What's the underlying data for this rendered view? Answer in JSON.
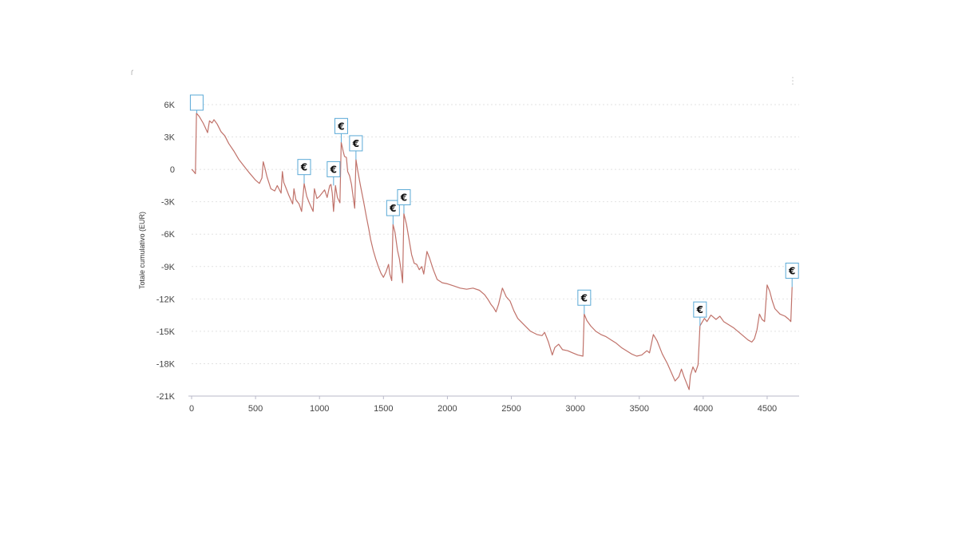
{
  "chart_data": {
    "type": "line",
    "ylabel": "Totale cumulativo (EUR)",
    "xlabel": "",
    "xlim": [
      0,
      4750
    ],
    "ylim": [
      -21000,
      6000
    ],
    "x_ticks": [
      0,
      500,
      1000,
      1500,
      2000,
      2500,
      3000,
      3500,
      4000,
      4500
    ],
    "x_tick_labels": [
      "0",
      "500",
      "1000",
      "1500",
      "2000",
      "2500",
      "3000",
      "3500",
      "4000",
      "4500"
    ],
    "y_ticks": [
      6000,
      3000,
      0,
      -3000,
      -6000,
      -9000,
      -12000,
      -15000,
      -18000,
      -21000
    ],
    "y_tick_labels": [
      "6K",
      "3K",
      "0",
      "-3K",
      "-6K",
      "-9K",
      "-12K",
      "-15K",
      "-18K",
      "-21K"
    ],
    "grid": "horizontal dotted",
    "legend": "none",
    "line_color": "#c0726a",
    "flag_color": "#5aa9d6",
    "series": [
      {
        "points": [
          [
            0,
            0
          ],
          [
            10,
            -100
          ],
          [
            30,
            -400
          ],
          [
            38,
            5200
          ],
          [
            60,
            4900
          ],
          [
            90,
            4300
          ],
          [
            110,
            3800
          ],
          [
            125,
            3400
          ],
          [
            140,
            4500
          ],
          [
            160,
            4300
          ],
          [
            175,
            4600
          ],
          [
            200,
            4200
          ],
          [
            230,
            3500
          ],
          [
            260,
            3100
          ],
          [
            290,
            2400
          ],
          [
            330,
            1700
          ],
          [
            370,
            900
          ],
          [
            410,
            300
          ],
          [
            450,
            -300
          ],
          [
            500,
            -1000
          ],
          [
            530,
            -1300
          ],
          [
            550,
            -800
          ],
          [
            560,
            700
          ],
          [
            570,
            300
          ],
          [
            590,
            -700
          ],
          [
            620,
            -1800
          ],
          [
            650,
            -2000
          ],
          [
            670,
            -1500
          ],
          [
            700,
            -2200
          ],
          [
            710,
            -200
          ],
          [
            720,
            -1200
          ],
          [
            740,
            -1800
          ],
          [
            760,
            -2400
          ],
          [
            790,
            -3200
          ],
          [
            800,
            -1800
          ],
          [
            815,
            -2800
          ],
          [
            840,
            -3200
          ],
          [
            860,
            -3900
          ],
          [
            880,
            -1300
          ],
          [
            900,
            -2500
          ],
          [
            920,
            -3100
          ],
          [
            950,
            -3900
          ],
          [
            960,
            -1800
          ],
          [
            980,
            -2700
          ],
          [
            1000,
            -2500
          ],
          [
            1040,
            -1900
          ],
          [
            1060,
            -2600
          ],
          [
            1080,
            -1500
          ],
          [
            1090,
            -1400
          ],
          [
            1100,
            -2200
          ],
          [
            1110,
            -3900
          ],
          [
            1125,
            -1500
          ],
          [
            1140,
            -2600
          ],
          [
            1160,
            -3100
          ],
          [
            1170,
            2500
          ],
          [
            1185,
            1700
          ],
          [
            1195,
            1200
          ],
          [
            1210,
            1100
          ],
          [
            1220,
            -200
          ],
          [
            1235,
            -600
          ],
          [
            1250,
            -1400
          ],
          [
            1260,
            -2300
          ],
          [
            1275,
            -3600
          ],
          [
            1285,
            900
          ],
          [
            1300,
            -200
          ],
          [
            1320,
            -1500
          ],
          [
            1345,
            -3000
          ],
          [
            1365,
            -4300
          ],
          [
            1385,
            -5500
          ],
          [
            1400,
            -6500
          ],
          [
            1420,
            -7500
          ],
          [
            1440,
            -8300
          ],
          [
            1460,
            -9000
          ],
          [
            1480,
            -9600
          ],
          [
            1500,
            -10000
          ],
          [
            1520,
            -9500
          ],
          [
            1540,
            -8800
          ],
          [
            1550,
            -9700
          ],
          [
            1565,
            -10300
          ],
          [
            1575,
            -5100
          ],
          [
            1590,
            -5800
          ],
          [
            1610,
            -7500
          ],
          [
            1625,
            -8300
          ],
          [
            1640,
            -9500
          ],
          [
            1650,
            -10500
          ],
          [
            1660,
            -4100
          ],
          [
            1680,
            -5100
          ],
          [
            1700,
            -6500
          ],
          [
            1720,
            -7900
          ],
          [
            1740,
            -8700
          ],
          [
            1760,
            -8800
          ],
          [
            1780,
            -9300
          ],
          [
            1800,
            -9000
          ],
          [
            1815,
            -9700
          ],
          [
            1840,
            -7600
          ],
          [
            1860,
            -8200
          ],
          [
            1890,
            -9300
          ],
          [
            1920,
            -10200
          ],
          [
            1960,
            -10500
          ],
          [
            2000,
            -10600
          ],
          [
            2050,
            -10800
          ],
          [
            2100,
            -11000
          ],
          [
            2150,
            -11100
          ],
          [
            2200,
            -11000
          ],
          [
            2250,
            -11200
          ],
          [
            2290,
            -11600
          ],
          [
            2320,
            -12100
          ],
          [
            2340,
            -12500
          ],
          [
            2360,
            -12800
          ],
          [
            2380,
            -13200
          ],
          [
            2400,
            -12500
          ],
          [
            2430,
            -11000
          ],
          [
            2460,
            -11800
          ],
          [
            2490,
            -12200
          ],
          [
            2520,
            -13100
          ],
          [
            2550,
            -13800
          ],
          [
            2600,
            -14400
          ],
          [
            2650,
            -15000
          ],
          [
            2700,
            -15300
          ],
          [
            2740,
            -15400
          ],
          [
            2760,
            -15100
          ],
          [
            2790,
            -16000
          ],
          [
            2820,
            -17200
          ],
          [
            2840,
            -16500
          ],
          [
            2870,
            -16200
          ],
          [
            2900,
            -16700
          ],
          [
            2940,
            -16800
          ],
          [
            2980,
            -17000
          ],
          [
            3020,
            -17200
          ],
          [
            3060,
            -17300
          ],
          [
            3070,
            -13400
          ],
          [
            3090,
            -14000
          ],
          [
            3120,
            -14500
          ],
          [
            3160,
            -15000
          ],
          [
            3200,
            -15300
          ],
          [
            3240,
            -15500
          ],
          [
            3280,
            -15800
          ],
          [
            3320,
            -16100
          ],
          [
            3360,
            -16500
          ],
          [
            3400,
            -16800
          ],
          [
            3440,
            -17100
          ],
          [
            3480,
            -17300
          ],
          [
            3520,
            -17200
          ],
          [
            3560,
            -16800
          ],
          [
            3580,
            -17000
          ],
          [
            3610,
            -15300
          ],
          [
            3640,
            -15900
          ],
          [
            3680,
            -17100
          ],
          [
            3720,
            -18000
          ],
          [
            3750,
            -18800
          ],
          [
            3780,
            -19600
          ],
          [
            3810,
            -19200
          ],
          [
            3830,
            -18500
          ],
          [
            3850,
            -19200
          ],
          [
            3870,
            -19800
          ],
          [
            3890,
            -20400
          ],
          [
            3900,
            -19100
          ],
          [
            3920,
            -18300
          ],
          [
            3940,
            -18800
          ],
          [
            3960,
            -18100
          ],
          [
            3975,
            -14500
          ],
          [
            3990,
            -14200
          ],
          [
            4010,
            -13800
          ],
          [
            4030,
            -14100
          ],
          [
            4060,
            -13500
          ],
          [
            4100,
            -13900
          ],
          [
            4130,
            -13600
          ],
          [
            4160,
            -14100
          ],
          [
            4200,
            -14400
          ],
          [
            4240,
            -14700
          ],
          [
            4280,
            -15100
          ],
          [
            4320,
            -15500
          ],
          [
            4350,
            -15800
          ],
          [
            4380,
            -16000
          ],
          [
            4400,
            -15700
          ],
          [
            4420,
            -14900
          ],
          [
            4440,
            -13400
          ],
          [
            4460,
            -13900
          ],
          [
            4480,
            -14100
          ],
          [
            4500,
            -10700
          ],
          [
            4520,
            -11300
          ],
          [
            4540,
            -12200
          ],
          [
            4560,
            -12900
          ],
          [
            4600,
            -13400
          ],
          [
            4640,
            -13600
          ],
          [
            4670,
            -13900
          ],
          [
            4685,
            -14100
          ],
          [
            4695,
            -10900
          ]
        ]
      }
    ],
    "flags": [
      {
        "x": 40,
        "y": 5200,
        "text": ""
      },
      {
        "x": 880,
        "y": -1300,
        "text": "€"
      },
      {
        "x": 1110,
        "y": -1500,
        "text": "€"
      },
      {
        "x": 1170,
        "y": 2500,
        "text": "€"
      },
      {
        "x": 1285,
        "y": 900,
        "text": "€"
      },
      {
        "x": 1575,
        "y": -5100,
        "text": "€"
      },
      {
        "x": 1660,
        "y": -4100,
        "text": "€"
      },
      {
        "x": 3070,
        "y": -13400,
        "text": "€"
      },
      {
        "x": 3975,
        "y": -14500,
        "text": "€"
      },
      {
        "x": 4695,
        "y": -10900,
        "text": "€"
      }
    ]
  }
}
